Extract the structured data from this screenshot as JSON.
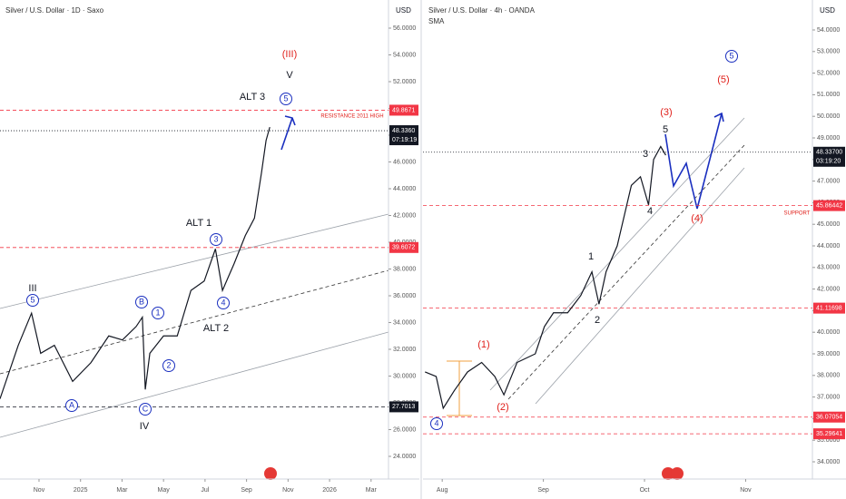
{
  "chart_data": [
    {
      "type": "line",
      "title": "Silver / U.S. Dollar · 1D · Saxo",
      "currency": "USD",
      "ylim": [
        24,
        56
      ],
      "yticks": [
        {
          "value": 24,
          "label": "24.0000"
        },
        {
          "value": 26,
          "label": "26.0000"
        },
        {
          "value": 28,
          "label": "28.0000"
        },
        {
          "value": 30,
          "label": "30.0000"
        },
        {
          "value": 32,
          "label": "32.0000"
        },
        {
          "value": 34,
          "label": "34.0000"
        },
        {
          "value": 36,
          "label": "36.0000"
        },
        {
          "value": 38,
          "label": "38.0000"
        },
        {
          "value": 40,
          "label": "40.0000"
        },
        {
          "value": 42,
          "label": "42.0000"
        },
        {
          "value": 44,
          "label": "44.0000"
        },
        {
          "value": 46,
          "label": "46.0000"
        },
        {
          "value": 48,
          "label": "48.0000"
        },
        {
          "value": 50,
          "label": "50.0000"
        },
        {
          "value": 52,
          "label": "52.0000"
        },
        {
          "value": 54,
          "label": "54.0000"
        },
        {
          "value": 56,
          "label": "56.0000"
        }
      ],
      "xlim": [
        -0.94,
        8.42
      ],
      "xticks": [
        {
          "value": 0,
          "label": "Nov"
        },
        {
          "value": 1,
          "label": "2025"
        },
        {
          "value": 2,
          "label": "Mar"
        },
        {
          "value": 3,
          "label": "May"
        },
        {
          "value": 4,
          "label": "Jul"
        },
        {
          "value": 5,
          "label": "Sep"
        },
        {
          "value": 6,
          "label": "Nov"
        },
        {
          "value": 7,
          "label": "2026"
        },
        {
          "value": 8,
          "label": "Mar"
        }
      ],
      "series": [
        {
          "color": "#131722",
          "x": [
            -0.94,
            -0.5,
            -0.18,
            0.04,
            0.37,
            0.81,
            1.25,
            1.68,
            2.01,
            2.34,
            2.49,
            2.56,
            2.67,
            3.0,
            3.33,
            3.66,
            3.98,
            4.25,
            4.42,
            4.7,
            4.97,
            5.19,
            5.36,
            5.47,
            5.56
          ],
          "values": [
            28.3,
            32.3,
            34.7,
            31.7,
            32.3,
            29.6,
            31.0,
            33.0,
            32.7,
            33.7,
            34.4,
            29.0,
            31.7,
            33.0,
            33.0,
            36.4,
            37.1,
            39.5,
            36.4,
            38.4,
            40.5,
            41.8,
            45.2,
            47.6,
            48.6
          ]
        }
      ],
      "levels": [
        {
          "value": 49.8671,
          "label": "49.8671",
          "color": "#f23645"
        },
        {
          "value": 48.336,
          "label": "48.3360",
          "color": "#131722",
          "time": "07:19:19"
        },
        {
          "value": 39.6072,
          "label": "39.6072",
          "color": "#f23645"
        },
        {
          "value": 27.7013,
          "label": "27.7013",
          "color": "#131722"
        }
      ],
      "annotations": [
        {
          "text": "(III)",
          "color": "#e0201b"
        },
        {
          "text": "V",
          "color": "#131722"
        },
        {
          "text": "ALT 3",
          "color": "#131722"
        },
        {
          "text": "5",
          "color": "#1a2fbf",
          "circled": true
        },
        {
          "text": "RESISTANCE 2011  HIGH",
          "color": "#e0201b"
        },
        {
          "text": "ALT 1",
          "color": "#131722"
        },
        {
          "text": "3",
          "color": "#1a2fbf",
          "circled": true
        },
        {
          "text": "4",
          "color": "#1a2fbf",
          "circled": true
        },
        {
          "text": "ALT 2",
          "color": "#131722"
        },
        {
          "text": "III",
          "color": "#131722"
        },
        {
          "text": "5",
          "color": "#1a2fbf",
          "circled": true
        },
        {
          "text": "B",
          "color": "#1a2fbf",
          "circled": true
        },
        {
          "text": "1",
          "color": "#1a2fbf",
          "circled": true
        },
        {
          "text": "2",
          "color": "#1a2fbf",
          "circled": true
        },
        {
          "text": "A",
          "color": "#1a2fbf",
          "circled": true
        },
        {
          "text": "C",
          "color": "#1a2fbf",
          "circled": true
        },
        {
          "text": "IV",
          "color": "#131722"
        }
      ]
    },
    {
      "type": "line",
      "title": "Silver / U.S. Dollar · 4h · OANDA",
      "subtitle": "SMA",
      "currency": "USD",
      "ylim": [
        34,
        54
      ],
      "yticks": [
        {
          "value": 34,
          "label": "34.0000"
        },
        {
          "value": 35,
          "label": "35.0000"
        },
        {
          "value": 36,
          "label": "36.0000"
        },
        {
          "value": 37,
          "label": "37.0000"
        },
        {
          "value": 38,
          "label": "38.0000"
        },
        {
          "value": 39,
          "label": "39.0000"
        },
        {
          "value": 40,
          "label": "40.0000"
        },
        {
          "value": 41,
          "label": "41.0000"
        },
        {
          "value": 42,
          "label": "42.0000"
        },
        {
          "value": 43,
          "label": "43.0000"
        },
        {
          "value": 44,
          "label": "44.0000"
        },
        {
          "value": 45,
          "label": "45.0000"
        },
        {
          "value": 46,
          "label": "46.0000"
        },
        {
          "value": 47,
          "label": "47.0000"
        },
        {
          "value": 48,
          "label": "48.0000"
        },
        {
          "value": 49,
          "label": "49.0000"
        },
        {
          "value": 50,
          "label": "50.0000"
        },
        {
          "value": 51,
          "label": "51.0000"
        },
        {
          "value": 52,
          "label": "52.0000"
        },
        {
          "value": 53,
          "label": "53.0000"
        },
        {
          "value": 54,
          "label": "54.0000"
        }
      ],
      "xlim": [
        -0.19,
        3.66
      ],
      "xticks": [
        {
          "value": 0,
          "label": "Aug"
        },
        {
          "value": 1,
          "label": "Sep"
        },
        {
          "value": 2,
          "label": "Oct"
        },
        {
          "value": 3,
          "label": "Nov"
        }
      ],
      "series": [
        {
          "color": "#131722",
          "x": [
            -0.17,
            -0.06,
            0.01,
            0.12,
            0.25,
            0.39,
            0.52,
            0.61,
            0.74,
            0.92,
            1.01,
            1.1,
            1.24,
            1.37,
            1.48,
            1.55,
            1.62,
            1.73,
            1.87,
            1.96,
            2.04,
            2.09,
            2.16,
            2.21
          ],
          "values": [
            38.16,
            37.95,
            36.48,
            37.3,
            38.16,
            38.6,
            37.95,
            37.1,
            38.6,
            39.0,
            40.26,
            40.9,
            40.9,
            41.7,
            42.8,
            41.3,
            42.8,
            44.0,
            46.8,
            47.2,
            45.9,
            48.0,
            48.6,
            48.2
          ]
        }
      ],
      "levels": [
        {
          "value": 48.337,
          "label": "48.33700",
          "color": "#131722",
          "time": "03:19:20"
        },
        {
          "value": 45.86442,
          "label": "45.86442",
          "color": "#f23645"
        },
        {
          "value": 41.11698,
          "label": "41.11698",
          "color": "#f23645"
        },
        {
          "value": 36.07054,
          "label": "36.07054",
          "color": "#f23645"
        },
        {
          "value": 35.29641,
          "label": "35.29641",
          "color": "#f23645"
        }
      ],
      "annotations": [
        {
          "text": "5",
          "color": "#1a2fbf",
          "circled": true
        },
        {
          "text": "(5)",
          "color": "#e0201b"
        },
        {
          "text": "(3)",
          "color": "#e0201b"
        },
        {
          "text": "5",
          "color": "#131722"
        },
        {
          "text": "3",
          "color": "#131722"
        },
        {
          "text": "4",
          "color": "#131722"
        },
        {
          "text": "SUPPORT",
          "color": "#e0201b"
        },
        {
          "text": "(4)",
          "color": "#e0201b"
        },
        {
          "text": "1",
          "color": "#131722"
        },
        {
          "text": "2",
          "color": "#131722"
        },
        {
          "text": "(1)",
          "color": "#e0201b"
        },
        {
          "text": "(2)",
          "color": "#e0201b"
        },
        {
          "text": "4",
          "color": "#1a2fbf",
          "circled": true
        }
      ]
    }
  ]
}
